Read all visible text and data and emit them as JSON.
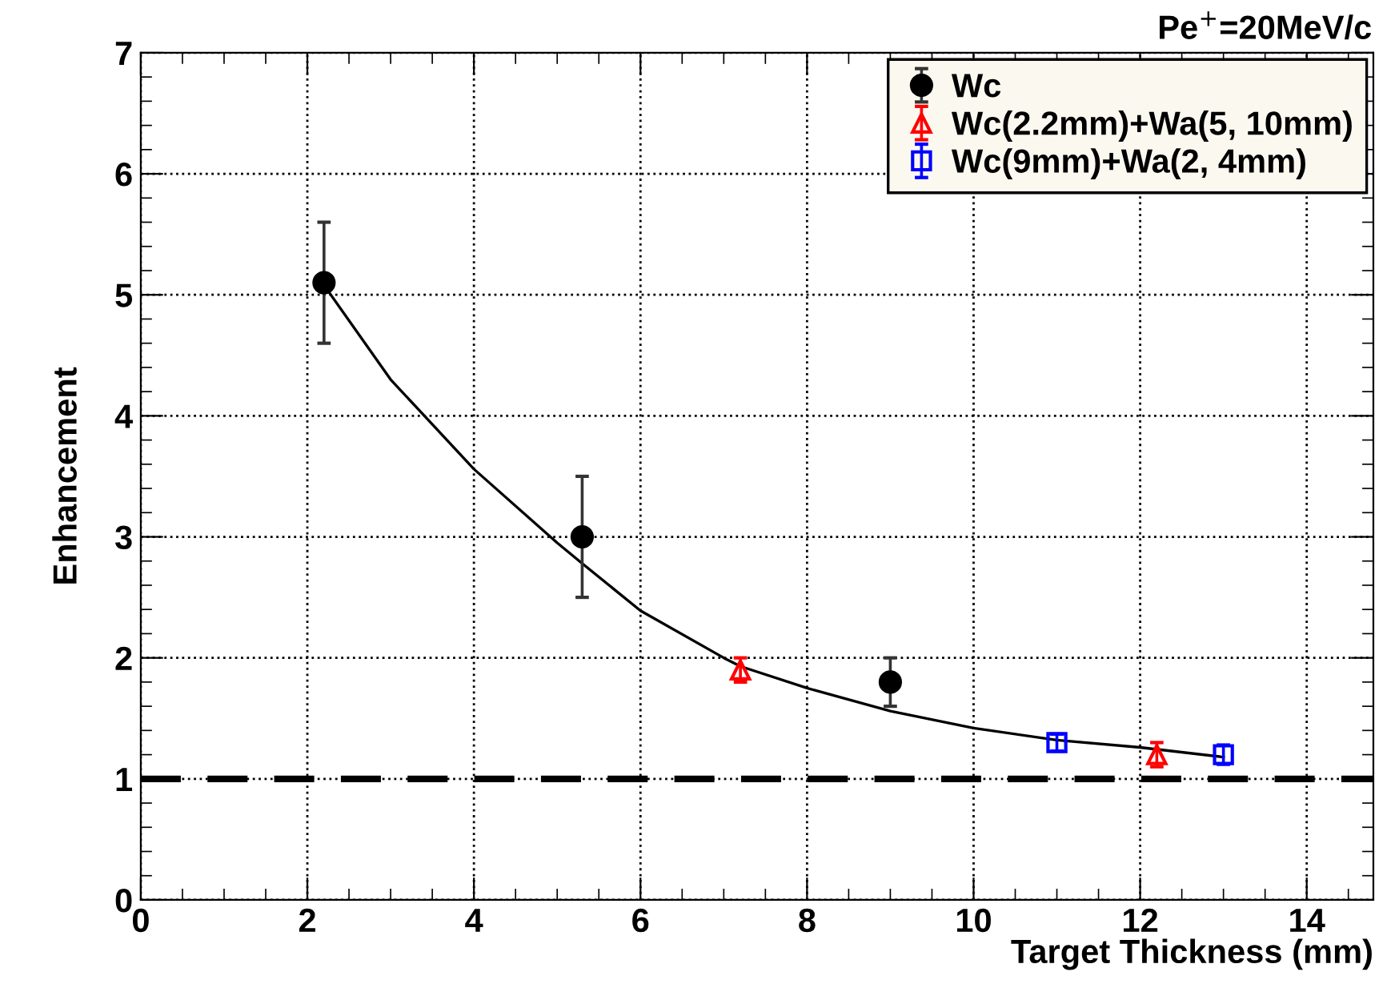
{
  "chart_data": {
    "type": "scatter",
    "title": "Pe$^{+}$=20MeV/c",
    "xlabel": "Target Thickness (mm)",
    "ylabel": "Enhancement",
    "xlim": [
      0,
      14.8
    ],
    "xticks": [
      0,
      2,
      4,
      6,
      8,
      10,
      12,
      14
    ],
    "ylim": [
      0,
      7
    ],
    "yticks": [
      0,
      1,
      2,
      3,
      4,
      5,
      6,
      7
    ],
    "grid": true,
    "legend": "top right",
    "series": [
      {
        "name": "Wc",
        "color": "#000000",
        "marker": "circle",
        "x": [
          2.2,
          5.3,
          9
        ],
        "values": [
          5.1,
          3.0,
          1.8
        ],
        "errors": [
          0.5,
          0.5,
          0.2
        ]
      },
      {
        "name": "Wc(2.2mm)+Wa(5, 10mm)",
        "color": "#ff0000",
        "marker": "triangle",
        "x": [
          7.2,
          12.2
        ],
        "values": [
          1.9,
          1.2
        ],
        "errors": [
          0.1,
          0.1
        ]
      },
      {
        "name": "Wc(9mm)+Wa(2, 4mm)",
        "color": "#0000ff",
        "marker": "square",
        "x": [
          11,
          13
        ],
        "values": [
          1.3,
          1.2
        ],
        "errors": [
          0.07,
          0.08
        ]
      },
      {
        "type": "line",
        "color": "#000000",
        "marker": "none",
        "x": [
          2.2,
          3,
          4,
          5,
          5.3,
          6,
          7,
          7.2,
          8,
          9,
          10,
          11,
          12,
          13
        ],
        "values": [
          5.08,
          4.3,
          3.56,
          2.95,
          2.78,
          2.39,
          2.0,
          1.93,
          1.75,
          1.56,
          1.42,
          1.32,
          1.26,
          1.18
        ]
      }
    ],
    "ref_lines": [
      {
        "axis": "y",
        "value": 1,
        "color": "#000000",
        "line_style": "dashed"
      }
    ]
  }
}
